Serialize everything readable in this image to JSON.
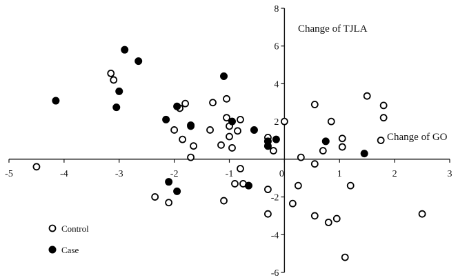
{
  "chart_data": {
    "type": "scatter",
    "xlabel": "Change of GO",
    "ylabel": "Change of TJLA",
    "xlim": [
      -5,
      3
    ],
    "ylim": [
      -6,
      8
    ],
    "xticks": [
      -5,
      -4,
      -3,
      -2,
      -1,
      0,
      1,
      2,
      3
    ],
    "yticks": [
      -6,
      -4,
      -2,
      0,
      2,
      4,
      6,
      8
    ],
    "grid": false,
    "legend_position": "bottom-left",
    "series": [
      {
        "name": "Control",
        "marker": "open-circle",
        "color": "#000000",
        "points": [
          [
            -4.5,
            -0.4
          ],
          [
            -3.15,
            4.55
          ],
          [
            -3.1,
            4.2
          ],
          [
            -2.35,
            -2.0
          ],
          [
            -2.1,
            -2.3
          ],
          [
            -2.0,
            1.55
          ],
          [
            -1.9,
            2.7
          ],
          [
            -1.85,
            1.05
          ],
          [
            -1.8,
            2.95
          ],
          [
            -1.7,
            1.75
          ],
          [
            -1.7,
            0.1
          ],
          [
            -1.65,
            0.7
          ],
          [
            -1.35,
            1.55
          ],
          [
            -1.3,
            3.0
          ],
          [
            -1.15,
            0.75
          ],
          [
            -1.1,
            -2.2
          ],
          [
            -1.05,
            2.2
          ],
          [
            -1.05,
            3.2
          ],
          [
            -1.0,
            1.75
          ],
          [
            -1.0,
            1.2
          ],
          [
            -0.95,
            0.6
          ],
          [
            -0.9,
            -1.3
          ],
          [
            -0.85,
            1.5
          ],
          [
            -0.8,
            -0.5
          ],
          [
            -0.8,
            2.1
          ],
          [
            -0.75,
            -1.3
          ],
          [
            -0.65,
            -1.4
          ],
          [
            -0.3,
            1.15
          ],
          [
            -0.3,
            -2.9
          ],
          [
            -0.3,
            -1.6
          ],
          [
            -0.2,
            0.45
          ],
          [
            0.0,
            2.0
          ],
          [
            0.15,
            -2.35
          ],
          [
            0.25,
            -1.4
          ],
          [
            0.3,
            0.1
          ],
          [
            0.55,
            -0.25
          ],
          [
            0.55,
            2.9
          ],
          [
            0.55,
            -3.0
          ],
          [
            0.7,
            0.45
          ],
          [
            0.8,
            -3.35
          ],
          [
            0.85,
            2.0
          ],
          [
            0.95,
            -3.15
          ],
          [
            1.05,
            1.1
          ],
          [
            1.05,
            0.65
          ],
          [
            1.1,
            -5.2
          ],
          [
            1.2,
            -1.4
          ],
          [
            1.5,
            3.35
          ],
          [
            1.75,
            1.0
          ],
          [
            1.8,
            2.85
          ],
          [
            1.8,
            2.2
          ],
          [
            2.5,
            -2.9
          ]
        ]
      },
      {
        "name": "Case",
        "marker": "filled-circle",
        "color": "#000000",
        "points": [
          [
            -4.15,
            3.1
          ],
          [
            -3.05,
            2.75
          ],
          [
            -3.0,
            3.6
          ],
          [
            -2.9,
            5.8
          ],
          [
            -2.65,
            5.2
          ],
          [
            -2.15,
            2.1
          ],
          [
            -2.1,
            -1.2
          ],
          [
            -1.95,
            2.8
          ],
          [
            -1.95,
            -1.7
          ],
          [
            -1.7,
            1.8
          ],
          [
            -1.1,
            4.4
          ],
          [
            -0.95,
            2.0
          ],
          [
            -0.65,
            -1.4
          ],
          [
            -0.55,
            1.55
          ],
          [
            -0.3,
            0.95
          ],
          [
            -0.3,
            0.7
          ],
          [
            -0.15,
            1.05
          ],
          [
            0.75,
            0.95
          ],
          [
            1.45,
            0.3
          ]
        ]
      }
    ]
  }
}
